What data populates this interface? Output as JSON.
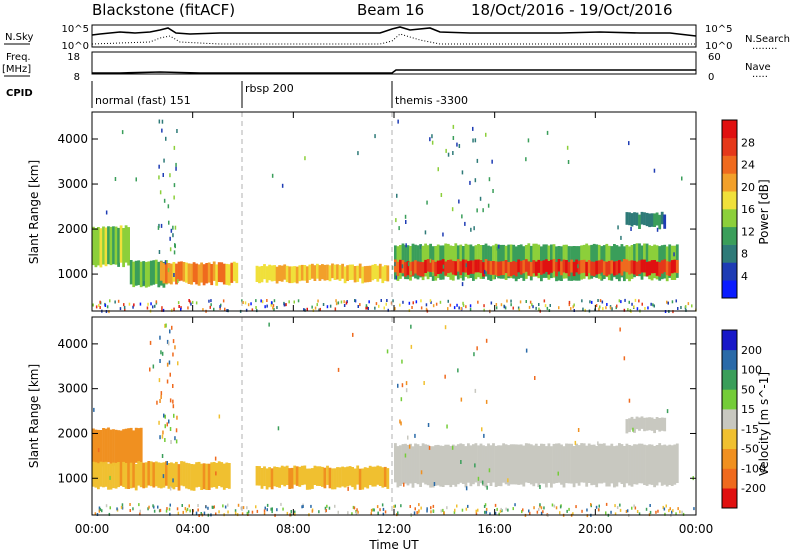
{
  "header": {
    "station": "Blackstone (fitACF)",
    "beam": "Beam 16",
    "dates": "18/Oct/2016 - 19/Oct/2016"
  },
  "panels": {
    "nsky": {
      "left_label": "N.Sky",
      "left_ticks": [
        "10^5",
        "10^0"
      ],
      "right_ticks": [
        "10^5",
        "10^0"
      ],
      "right_label": "N.Search",
      "right_legend": "........"
    },
    "freq": {
      "left_label": "Freq.",
      "left_unit": "[MHz]",
      "left_ticks": [
        "18",
        "8"
      ],
      "right_ticks": [
        "60",
        "0"
      ],
      "right_label": "Nave",
      "right_legend": "....."
    },
    "cpid": {
      "label": "CPID",
      "modes": [
        {
          "name": "normal (fast) 151",
          "start_hour": 0
        },
        {
          "name": "rbsp 200",
          "start_hour": 6
        },
        {
          "name": "themis -3300",
          "start_hour": 12
        }
      ]
    }
  },
  "axes": {
    "xlabel": "Time UT",
    "x_ticks": [
      "00:00",
      "04:00",
      "08:00",
      "12:00",
      "16:00",
      "20:00",
      "00:00"
    ],
    "ylabel_power": "Slant Range [km]",
    "ylabel_velocity": "Slant Range [km]",
    "y_ticks": [
      "1000",
      "2000",
      "3000",
      "4000"
    ]
  },
  "colorbars": {
    "power": {
      "label": "Power [dB]",
      "ticks": [
        "4",
        "8",
        "12",
        "16",
        "20",
        "24",
        "28"
      ],
      "colors": [
        "#0a1cff",
        "#1e3cb4",
        "#2e7a78",
        "#3a9e5a",
        "#8ccf3a",
        "#f0e03a",
        "#f2a02a",
        "#ef6a1e",
        "#e5381a",
        "#e01010"
      ]
    },
    "velocity": {
      "label": "Velocity [m s^-1]",
      "ticks": [
        "200",
        "100",
        "50",
        "15",
        "-15",
        "-50",
        "-100",
        "-200"
      ],
      "colors": [
        "#1818c8",
        "#2a6aa8",
        "#3a9e5a",
        "#74cc38",
        "#c8c8c0",
        "#f0c030",
        "#f09020",
        "#ef6a1e",
        "#e01010"
      ]
    }
  },
  "chart_data": {
    "type": "heatmap",
    "x_range_hours": [
      0,
      24
    ],
    "y_range_km": [
      180,
      4600
    ],
    "dashed_markers_hours": [
      6,
      12
    ],
    "power_bands": [
      {
        "from": 0,
        "to": 1.5,
        "low": 1200,
        "high": 2050,
        "value_db": 14
      },
      {
        "from": 1.5,
        "to": 3,
        "low": 750,
        "high": 1300,
        "value_db": 12
      },
      {
        "from": 2.7,
        "to": 5.8,
        "low": 800,
        "high": 1250,
        "value_db": 20
      },
      {
        "from": 6.5,
        "to": 11.8,
        "low": 850,
        "high": 1200,
        "value_db": 18
      },
      {
        "from": 12,
        "to": 23.3,
        "low": 900,
        "high": 1650,
        "value_db": 12
      },
      {
        "from": 12,
        "to": 23.3,
        "low": 1000,
        "high": 1300,
        "value_db": 26
      },
      {
        "from": 21.2,
        "to": 22.8,
        "low": 2050,
        "high": 2350,
        "value_db": 8
      }
    ],
    "velocity_bands": [
      {
        "from": 0,
        "to": 2,
        "low": 1300,
        "high": 2100,
        "value_ms": -80
      },
      {
        "from": 0,
        "to": 5.5,
        "low": 780,
        "high": 1350,
        "value_ms": -40
      },
      {
        "from": 6.5,
        "to": 11.8,
        "low": 800,
        "high": 1250,
        "value_ms": -40
      },
      {
        "from": 12,
        "to": 23.3,
        "low": 850,
        "high": 1750,
        "value_ms": 0
      },
      {
        "from": 21.2,
        "to": 22.8,
        "low": 2050,
        "high": 2350,
        "value_ms": 0
      }
    ]
  }
}
